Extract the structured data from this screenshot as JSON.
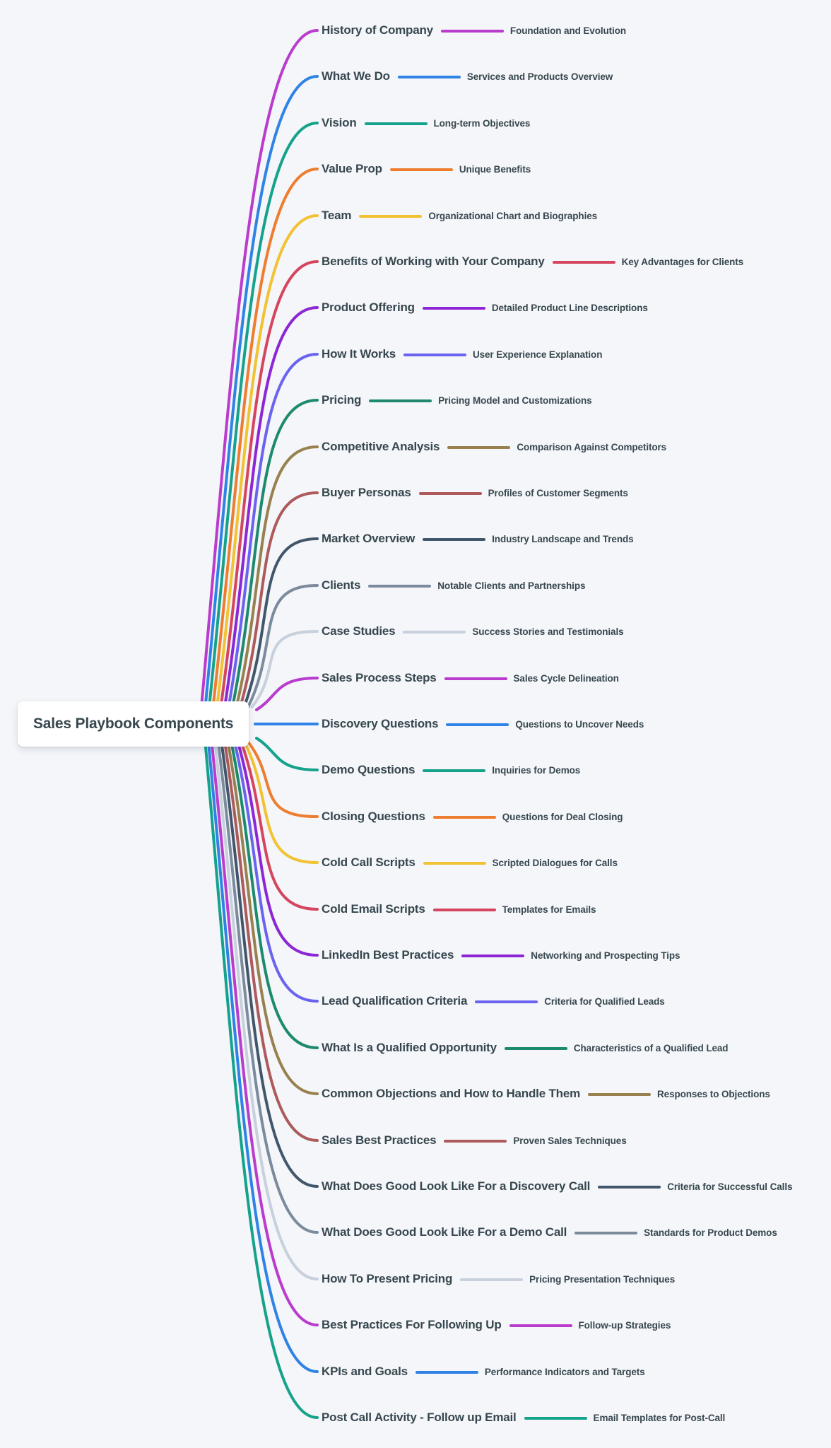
{
  "colors": {
    "background": "#f4f6f9",
    "text": "#37474f",
    "root_box": "#ffffff",
    "palette": [
      "#b93ccd",
      "#2f82e6",
      "#15a28b",
      "#ee7d2f",
      "#f1c232",
      "#d6455f",
      "#8d26d4",
      "#6b63f0",
      "#1d8a6e",
      "#98804f",
      "#ae5a5c",
      "#42566b",
      "#7b8b9d",
      "#c7d0dc"
    ]
  },
  "root": {
    "label": "Sales Playbook Components"
  },
  "branches": [
    {
      "label": "History of Company",
      "sublabel": "Foundation and Evolution",
      "color": "#b93ccd"
    },
    {
      "label": "What We Do",
      "sublabel": "Services and Products Overview",
      "color": "#2f82e6"
    },
    {
      "label": "Vision",
      "sublabel": "Long-term Objectives",
      "color": "#15a28b"
    },
    {
      "label": "Value Prop",
      "sublabel": "Unique Benefits",
      "color": "#ee7d2f"
    },
    {
      "label": "Team",
      "sublabel": "Organizational Chart and Biographies",
      "color": "#f1c232"
    },
    {
      "label": "Benefits of Working with Your Company",
      "sublabel": "Key Advantages for Clients",
      "color": "#d6455f"
    },
    {
      "label": "Product Offering",
      "sublabel": "Detailed Product Line Descriptions",
      "color": "#8d26d4"
    },
    {
      "label": "How It Works",
      "sublabel": "User Experience Explanation",
      "color": "#6b63f0"
    },
    {
      "label": "Pricing",
      "sublabel": "Pricing Model and Customizations",
      "color": "#1d8a6e"
    },
    {
      "label": "Competitive Analysis",
      "sublabel": "Comparison Against Competitors",
      "color": "#98804f"
    },
    {
      "label": "Buyer Personas",
      "sublabel": "Profiles of Customer Segments",
      "color": "#ae5a5c"
    },
    {
      "label": "Market Overview",
      "sublabel": "Industry Landscape and Trends",
      "color": "#42566b"
    },
    {
      "label": "Clients",
      "sublabel": "Notable Clients and Partnerships",
      "color": "#7b8b9d"
    },
    {
      "label": "Case Studies",
      "sublabel": "Success Stories and Testimonials",
      "color": "#c7d0dc"
    },
    {
      "label": "Sales Process Steps",
      "sublabel": "Sales Cycle Delineation",
      "color": "#b93ccd"
    },
    {
      "label": "Discovery Questions",
      "sublabel": "Questions to Uncover Needs",
      "color": "#2f82e6"
    },
    {
      "label": "Demo Questions",
      "sublabel": "Inquiries for Demos",
      "color": "#15a28b"
    },
    {
      "label": "Closing Questions",
      "sublabel": "Questions for Deal Closing",
      "color": "#ee7d2f"
    },
    {
      "label": "Cold Call Scripts",
      "sublabel": "Scripted Dialogues for Calls",
      "color": "#f1c232"
    },
    {
      "label": "Cold Email Scripts",
      "sublabel": "Templates for Emails",
      "color": "#d6455f"
    },
    {
      "label": "LinkedIn Best Practices",
      "sublabel": "Networking and Prospecting Tips",
      "color": "#8d26d4"
    },
    {
      "label": "Lead Qualification Criteria",
      "sublabel": "Criteria for Qualified Leads",
      "color": "#6b63f0"
    },
    {
      "label": "What Is a Qualified Opportunity",
      "sublabel": "Characteristics of a Qualified Lead",
      "color": "#1d8a6e"
    },
    {
      "label": "Common Objections and How to Handle Them",
      "sublabel": "Responses to Objections",
      "color": "#98804f"
    },
    {
      "label": "Sales Best Practices",
      "sublabel": "Proven Sales Techniques",
      "color": "#ae5a5c"
    },
    {
      "label": "What Does Good Look Like For a Discovery Call",
      "sublabel": "Criteria for Successful Calls",
      "color": "#42566b"
    },
    {
      "label": "What Does Good Look Like For a Demo Call",
      "sublabel": "Standards for Product Demos",
      "color": "#7b8b9d"
    },
    {
      "label": "How To Present Pricing",
      "sublabel": "Pricing Presentation Techniques",
      "color": "#c7d0dc"
    },
    {
      "label": "Best Practices For Following Up",
      "sublabel": "Follow-up Strategies",
      "color": "#b93ccd"
    },
    {
      "label": "KPIs and Goals",
      "sublabel": "Performance Indicators and Targets",
      "color": "#2f82e6"
    },
    {
      "label": "Post Call Activity - Follow up Email",
      "sublabel": "Email Templates for Post-Call",
      "color": "#15a28b"
    }
  ]
}
